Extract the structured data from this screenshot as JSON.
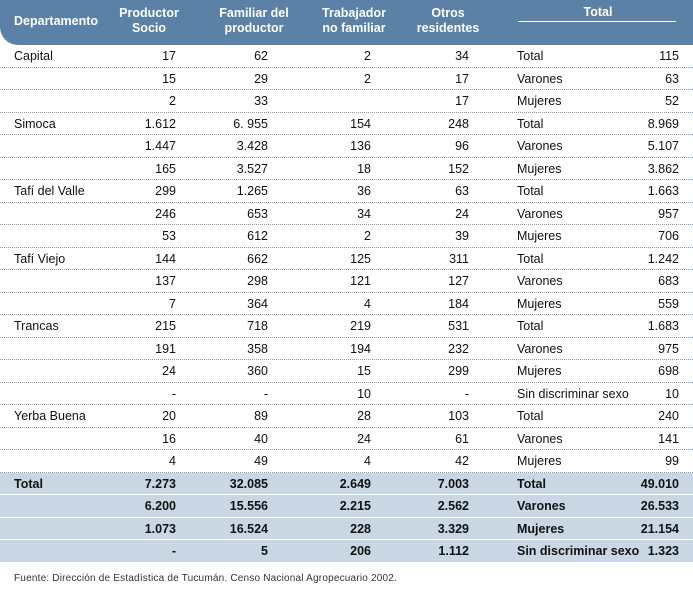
{
  "headers": {
    "departamento": "Departamento",
    "productor": "Productor Socio",
    "familiar": "Familiar del productor",
    "trabajador": "Trabajador no familiar",
    "otros": "Otros residentes",
    "total": "Total"
  },
  "rows": [
    {
      "dept": "Capital",
      "prod": "17",
      "fam": "62",
      "trab": "2",
      "otros": "34",
      "label": "Total",
      "total": "115"
    },
    {
      "dept": "",
      "prod": "15",
      "fam": "29",
      "trab": "2",
      "otros": "17",
      "label": "Varones",
      "total": "63"
    },
    {
      "dept": "",
      "prod": "2",
      "fam": "33",
      "trab": "",
      "otros": "17",
      "label": "Mujeres",
      "total": "52"
    },
    {
      "dept": "Simoca",
      "prod": "1.612",
      "fam": "6. 955",
      "trab": "154",
      "otros": "248",
      "label": "Total",
      "total": "8.969"
    },
    {
      "dept": "",
      "prod": "1.447",
      "fam": "3.428",
      "trab": "136",
      "otros": "96",
      "label": "Varones",
      "total": "5.107"
    },
    {
      "dept": "",
      "prod": "165",
      "fam": "3.527",
      "trab": "18",
      "otros": "152",
      "label": "Mujeres",
      "total": "3.862"
    },
    {
      "dept": "Tafí del Valle",
      "prod": "299",
      "fam": "1.265",
      "trab": "36",
      "otros": "63",
      "label": "Total",
      "total": "1.663"
    },
    {
      "dept": "",
      "prod": "246",
      "fam": "653",
      "trab": "34",
      "otros": "24",
      "label": "Varones",
      "total": "957"
    },
    {
      "dept": "",
      "prod": "53",
      "fam": "612",
      "trab": "2",
      "otros": "39",
      "label": "Mujeres",
      "total": "706"
    },
    {
      "dept": "Tafí Viejo",
      "prod": "144",
      "fam": "662",
      "trab": "125",
      "otros": "311",
      "label": "Total",
      "total": "1.242"
    },
    {
      "dept": "",
      "prod": "137",
      "fam": "298",
      "trab": "121",
      "otros": "127",
      "label": "Varones",
      "total": "683"
    },
    {
      "dept": "",
      "prod": "7",
      "fam": "364",
      "trab": "4",
      "otros": "184",
      "label": "Mujeres",
      "total": "559"
    },
    {
      "dept": "Trancas",
      "prod": "215",
      "fam": "718",
      "trab": "219",
      "otros": "531",
      "label": "Total",
      "total": "1.683"
    },
    {
      "dept": "",
      "prod": "191",
      "fam": "358",
      "trab": "194",
      "otros": "232",
      "label": "Varones",
      "total": "975"
    },
    {
      "dept": "",
      "prod": "24",
      "fam": "360",
      "trab": "15",
      "otros": "299",
      "label": "Mujeres",
      "total": "698"
    },
    {
      "dept": "",
      "prod": "-",
      "fam": "-",
      "trab": "10",
      "otros": "-",
      "label": "Sin discriminar sexo",
      "total": "10"
    },
    {
      "dept": "Yerba Buena",
      "prod": "20",
      "fam": "89",
      "trab": "28",
      "otros": "103",
      "label": "Total",
      "total": "240"
    },
    {
      "dept": "",
      "prod": "16",
      "fam": "40",
      "trab": "24",
      "otros": "61",
      "label": "Varones",
      "total": "141"
    },
    {
      "dept": "",
      "prod": "4",
      "fam": "49",
      "trab": "4",
      "otros": "42",
      "label": "Mujeres",
      "total": "99"
    }
  ],
  "summary": [
    {
      "dept": "Total",
      "prod": "7.273",
      "fam": "32.085",
      "trab": "2.649",
      "otros": "7.003",
      "label": "Total",
      "total": "49.010"
    },
    {
      "dept": "",
      "prod": "6.200",
      "fam": "15.556",
      "trab": "2.215",
      "otros": "2.562",
      "label": "Varones",
      "total": "26.533"
    },
    {
      "dept": "",
      "prod": "1.073",
      "fam": "16.524",
      "trab": "228",
      "otros": "3.329",
      "label": "Mujeres",
      "total": "21.154"
    },
    {
      "dept": "",
      "prod": "-",
      "fam": "5",
      "trab": "206",
      "otros": "1.112",
      "label": "Sin discriminar sexo",
      "total": "1.323"
    }
  ],
  "footer": "Fuente: Dirección de Estadística de Tucumán. Censo Nacional Agropecuario 2002.",
  "colors": {
    "header": "#5b81a7",
    "summary": "#c9d6e3",
    "separator": "#7a9cbd"
  }
}
